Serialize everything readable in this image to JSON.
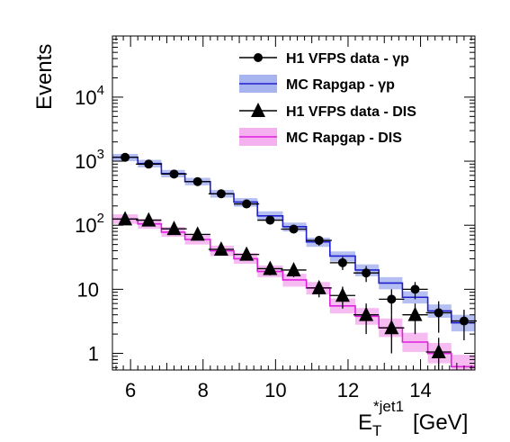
{
  "chart_data": {
    "type": "line",
    "xlabel": {
      "main": "E",
      "sub": "T",
      "sup": "*jet1",
      "unit": "[GeV]"
    },
    "ylabel": "Events",
    "log_y": true,
    "xlim": [
      5.5,
      15.5
    ],
    "ylim": [
      0.55,
      90000
    ],
    "x_ticks": [
      6,
      8,
      10,
      12,
      14
    ],
    "y_ticks": [
      {
        "value": 1,
        "base": "1",
        "exp": ""
      },
      {
        "value": 10,
        "base": "10",
        "exp": ""
      },
      {
        "value": 100,
        "base": "10",
        "exp": "2"
      },
      {
        "value": 1000,
        "base": "10",
        "exp": "3"
      },
      {
        "value": 10000,
        "base": "10",
        "exp": "4"
      }
    ],
    "bin_edges": [
      5.5,
      6.2,
      6.85,
      7.5,
      8.2,
      8.85,
      9.5,
      10.2,
      10.85,
      11.5,
      12.2,
      12.85,
      13.5,
      14.2,
      14.85,
      15.5
    ],
    "series": [
      {
        "name": "H1 VFPS data - γp",
        "kind": "data",
        "marker": "circle",
        "color": "#000000",
        "x": [
          5.85,
          6.5,
          7.2,
          7.85,
          8.5,
          9.2,
          9.85,
          10.5,
          11.2,
          11.85,
          12.5,
          13.2,
          13.85,
          14.5,
          15.2
        ],
        "y": [
          1150,
          900,
          630,
          480,
          310,
          215,
          120,
          87,
          58,
          26,
          18,
          7,
          10,
          4.3,
          3.2
        ],
        "y_err": [
          60,
          50,
          40,
          35,
          25,
          20,
          15,
          12,
          10,
          6,
          5,
          3,
          3,
          2.2,
          1.6
        ]
      },
      {
        "name": "MC Rapgap - γp",
        "kind": "mc",
        "color": "#2020cc",
        "band_color": "#a8b4f0",
        "y": [
          1150,
          920,
          640,
          480,
          310,
          230,
          140,
          95,
          55,
          33,
          20,
          12.5,
          7.5,
          4.6,
          3
        ],
        "y_band": [
          [
            1000,
            1300
          ],
          [
            800,
            1050
          ],
          [
            560,
            730
          ],
          [
            420,
            550
          ],
          [
            270,
            355
          ],
          [
            195,
            265
          ],
          [
            118,
            165
          ],
          [
            80,
            110
          ],
          [
            46,
            64
          ],
          [
            27,
            39
          ],
          [
            16,
            24.5
          ],
          [
            10,
            15.5
          ],
          [
            6,
            9.3
          ],
          [
            3.6,
            5.8
          ],
          [
            2.2,
            4
          ]
        ]
      },
      {
        "name": "H1 VFPS data - DIS",
        "kind": "data",
        "marker": "triangle",
        "color": "#000000",
        "x": [
          5.85,
          6.5,
          7.2,
          7.85,
          8.5,
          9.2,
          9.85,
          10.5,
          11.2,
          11.85,
          12.5,
          13.2,
          13.85,
          14.5
        ],
        "y": [
          125,
          120,
          88,
          72,
          42,
          35,
          21,
          20,
          10.5,
          8,
          4,
          2.5,
          4,
          1.05
        ],
        "y_err": [
          15,
          14,
          11,
          10,
          7,
          6,
          4.5,
          4.5,
          3,
          3,
          2,
          1.5,
          2,
          0.7
        ]
      },
      {
        "name": "MC Rapgap - DIS",
        "kind": "mc",
        "color": "#e020e0",
        "band_color": "#f5b0f0",
        "y": [
          125,
          105,
          78,
          60,
          40,
          30,
          19,
          14,
          10.5,
          5.5,
          3.8,
          2.5,
          1.5,
          1,
          0.62
        ],
        "y_band": [
          [
            105,
            148
          ],
          [
            88,
            125
          ],
          [
            66,
            94
          ],
          [
            50,
            72
          ],
          [
            33,
            48
          ],
          [
            25,
            37
          ],
          [
            15.5,
            23.5
          ],
          [
            11,
            17.5
          ],
          [
            8.3,
            13
          ],
          [
            4.2,
            7.2
          ],
          [
            2.8,
            5.1
          ],
          [
            1.8,
            3.5
          ],
          [
            1.05,
            2.1
          ],
          [
            0.7,
            1.45
          ],
          [
            0.4,
            0.95
          ]
        ]
      }
    ],
    "legend_position": "top-right"
  }
}
